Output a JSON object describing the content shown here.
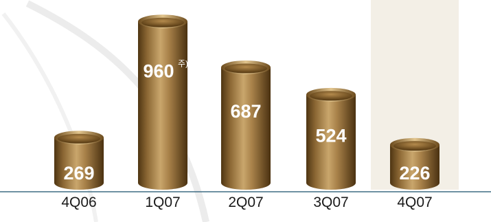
{
  "chart_data": {
    "type": "bar",
    "categories": [
      "4Q06",
      "1Q07",
      "2Q07",
      "3Q07",
      "4Q07"
    ],
    "values": [
      269,
      960,
      687,
      524,
      226
    ],
    "value_labels": [
      "269",
      "960",
      "687",
      "524",
      "226"
    ],
    "value_notes": [
      "",
      "주)",
      "",
      "",
      ""
    ],
    "highlight_category": "4Q07",
    "ylim": [
      0,
      1000
    ],
    "grid": false,
    "legend": "none",
    "title": "",
    "xlabel": "",
    "ylabel": ""
  },
  "colors": {
    "bar_dark": "#4e3512",
    "bar_mid": "#a9824a",
    "bar_light": "#c9a66c",
    "bar_top": "#e2c58e",
    "highlight_band": "#f3efe6",
    "axis_line": "#3f6d84",
    "value_text": "#ffffff",
    "category_text": "#1a1a1a"
  }
}
